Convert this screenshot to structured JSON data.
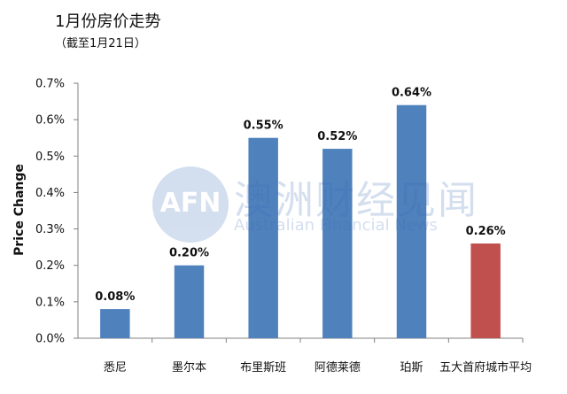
{
  "header": {
    "title": "1月份房价走势",
    "subtitle": "（截至1月21日）"
  },
  "watermark": {
    "logo_text": "AFN",
    "cn_text": "澳洲财经见闻",
    "en_text": "Australian Financial News"
  },
  "chart_data": {
    "type": "bar",
    "title": "1月份房价走势",
    "subtitle": "（截至1月21日）",
    "xlabel": "",
    "ylabel": "Price Change",
    "ylim": [
      0,
      0.7
    ],
    "yticks": [
      "0.0%",
      "0.1%",
      "0.2%",
      "0.3%",
      "0.4%",
      "0.5%",
      "0.6%",
      "0.7%"
    ],
    "categories": [
      "悉尼",
      "墨尔本",
      "布里斯班",
      "阿德莱德",
      "珀斯",
      "五大首府城市平均"
    ],
    "values": [
      0.08,
      0.2,
      0.55,
      0.52,
      0.64,
      0.26
    ],
    "data_labels": [
      "0.08%",
      "0.20%",
      "0.55%",
      "0.52%",
      "0.64%",
      "0.26%"
    ],
    "colors": [
      "#4f81bd",
      "#4f81bd",
      "#4f81bd",
      "#4f81bd",
      "#4f81bd",
      "#c0504d"
    ],
    "grid": false,
    "legend": "none"
  }
}
